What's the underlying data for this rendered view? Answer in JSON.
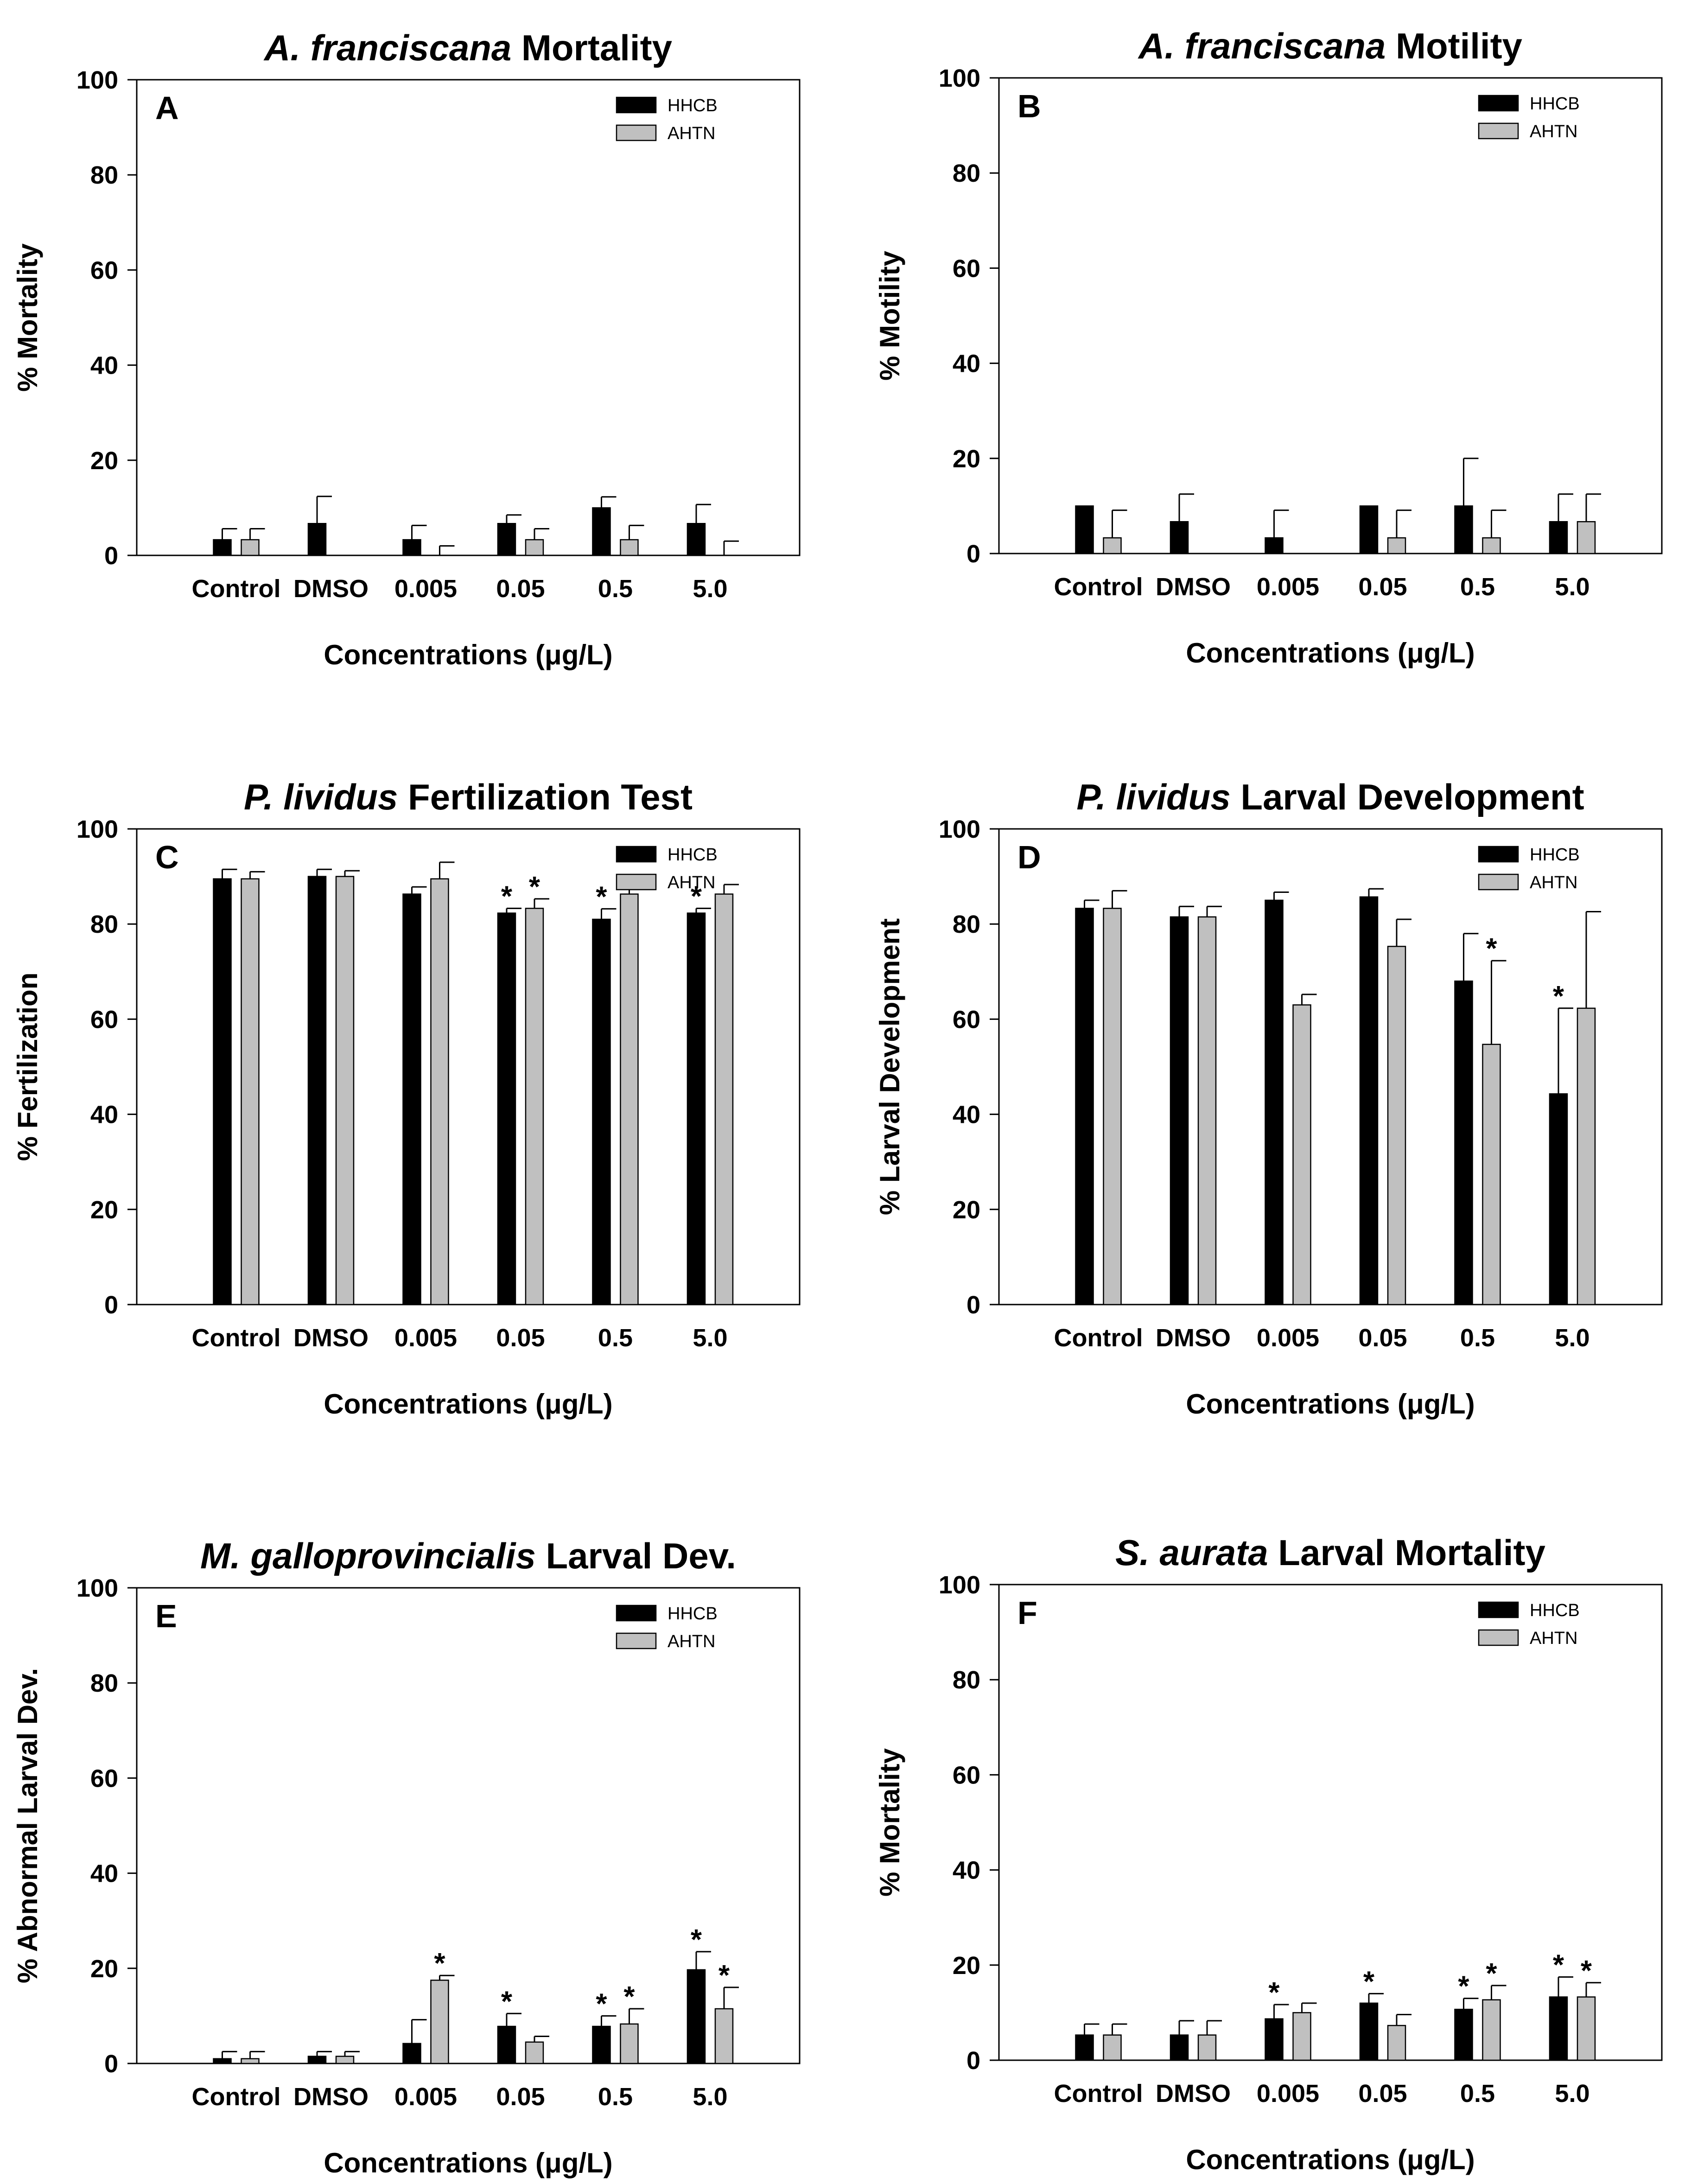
{
  "chart_data": [
    {
      "id": "A",
      "type": "bar",
      "panel_label": "A",
      "title": [
        {
          "text": "A. franciscana",
          "italic": true
        },
        {
          "text": " Mortality",
          "italic": false
        }
      ],
      "xlabel": "Concentrations (μg/L)",
      "ylabel": "% Mortality",
      "ylim": [
        0,
        100
      ],
      "yticks": [
        0,
        20,
        40,
        60,
        80,
        100
      ],
      "categories": [
        "Control",
        "DMSO",
        "0.005",
        "0.05",
        "0.5",
        "5.0"
      ],
      "legend": {
        "position": "top-right",
        "entries": [
          "HHCB",
          "AHTN"
        ]
      },
      "series": [
        {
          "name": "HHCB",
          "color": "#000000",
          "values": [
            3.3,
            6.7,
            3.3,
            6.7,
            10.0,
            6.7
          ],
          "errors": [
            2.3,
            5.7,
            3.0,
            1.8,
            2.3,
            4.0
          ],
          "sig": [
            false,
            false,
            false,
            false,
            false,
            false
          ]
        },
        {
          "name": "AHTN",
          "color": "#c0c0c0",
          "values": [
            3.3,
            0,
            0,
            3.3,
            3.3,
            0
          ],
          "errors": [
            2.3,
            0,
            2.0,
            2.3,
            3.0,
            3.0
          ],
          "sig": [
            false,
            false,
            false,
            false,
            false,
            false
          ]
        }
      ]
    },
    {
      "id": "B",
      "type": "bar",
      "panel_label": "B",
      "title": [
        {
          "text": "A. franciscana",
          "italic": true
        },
        {
          "text": " Motility",
          "italic": false
        }
      ],
      "xlabel": "Concentrations (μg/L)",
      "ylabel": "% Motility",
      "ylim": [
        0,
        100
      ],
      "yticks": [
        0,
        20,
        40,
        60,
        80,
        100
      ],
      "categories": [
        "Control",
        "DMSO",
        "0.005",
        "0.05",
        "0.5",
        "5.0"
      ],
      "legend": {
        "position": "top-right",
        "entries": [
          "HHCB",
          "AHTN"
        ]
      },
      "series": [
        {
          "name": "HHCB",
          "color": "#000000",
          "values": [
            10.0,
            6.7,
            3.3,
            10.0,
            10.0,
            6.7
          ],
          "errors": [
            0,
            5.8,
            5.8,
            0,
            10.0,
            5.8
          ],
          "sig": [
            false,
            false,
            false,
            false,
            false,
            false
          ]
        },
        {
          "name": "AHTN",
          "color": "#c0c0c0",
          "values": [
            3.3,
            0,
            0,
            3.3,
            3.3,
            6.7
          ],
          "errors": [
            5.8,
            0,
            0,
            5.8,
            5.8,
            5.8
          ],
          "sig": [
            false,
            false,
            false,
            false,
            false,
            false
          ]
        }
      ]
    },
    {
      "id": "C",
      "type": "bar",
      "panel_label": "C",
      "title": [
        {
          "text": "P. lividus",
          "italic": true
        },
        {
          "text": " Fertilization Test",
          "italic": false
        }
      ],
      "xlabel": "Concentrations (μg/L)",
      "ylabel": "% Fertilization",
      "ylim": [
        0,
        100
      ],
      "yticks": [
        0,
        20,
        40,
        60,
        80,
        100
      ],
      "categories": [
        "Control",
        "DMSO",
        "0.005",
        "0.05",
        "0.5",
        "5.0"
      ],
      "legend": {
        "position": "top-right",
        "entries": [
          "HHCB",
          "AHTN"
        ]
      },
      "series": [
        {
          "name": "HHCB",
          "color": "#000000",
          "values": [
            89.5,
            90.0,
            86.3,
            82.3,
            81.0,
            82.3
          ],
          "errors": [
            2.0,
            1.5,
            1.5,
            1.0,
            2.2,
            1.0
          ],
          "sig": [
            false,
            false,
            false,
            true,
            true,
            true
          ]
        },
        {
          "name": "AHTN",
          "color": "#c0c0c0",
          "values": [
            89.5,
            90.0,
            89.5,
            83.3,
            86.3,
            86.3
          ],
          "errors": [
            1.5,
            1.2,
            3.5,
            2.0,
            4.0,
            2.0
          ],
          "sig": [
            false,
            false,
            false,
            true,
            false,
            false
          ]
        }
      ]
    },
    {
      "id": "D",
      "type": "bar",
      "panel_label": "D",
      "title": [
        {
          "text": "P. lividus",
          "italic": true
        },
        {
          "text": " Larval Development",
          "italic": false
        }
      ],
      "xlabel": "Concentrations (μg/L)",
      "ylabel": "% Larval Development",
      "ylim": [
        0,
        100
      ],
      "yticks": [
        0,
        20,
        40,
        60,
        80,
        100
      ],
      "categories": [
        "Control",
        "DMSO",
        "0.005",
        "0.05",
        "0.5",
        "5.0"
      ],
      "legend": {
        "position": "top-right",
        "entries": [
          "HHCB",
          "AHTN"
        ]
      },
      "series": [
        {
          "name": "HHCB",
          "color": "#000000",
          "values": [
            83.3,
            81.5,
            85.0,
            85.7,
            68.0,
            44.3
          ],
          "errors": [
            1.7,
            2.2,
            1.7,
            1.7,
            10.0,
            18.0
          ],
          "sig": [
            false,
            false,
            false,
            false,
            false,
            true
          ]
        },
        {
          "name": "AHTN",
          "color": "#c0c0c0",
          "values": [
            83.3,
            81.5,
            63.0,
            75.3,
            54.7,
            62.3
          ],
          "errors": [
            3.7,
            2.2,
            2.2,
            5.7,
            17.6,
            20.3
          ],
          "sig": [
            false,
            false,
            false,
            false,
            true,
            false
          ]
        }
      ]
    },
    {
      "id": "E",
      "type": "bar",
      "panel_label": "E",
      "title": [
        {
          "text": "M. galloprovincialis",
          "italic": true
        },
        {
          "text": " Larval Dev.",
          "italic": false
        }
      ],
      "xlabel": "Concentrations (μg/L)",
      "ylabel": "% Abnormal Larval Dev.",
      "ylim": [
        0,
        100
      ],
      "yticks": [
        0,
        20,
        40,
        60,
        80,
        100
      ],
      "categories": [
        "Control",
        "DMSO",
        "0.005",
        "0.05",
        "0.5",
        "5.0"
      ],
      "legend": {
        "position": "top-right",
        "entries": [
          "HHCB",
          "AHTN"
        ]
      },
      "series": [
        {
          "name": "HHCB",
          "color": "#000000",
          "values": [
            1.0,
            1.5,
            4.2,
            7.8,
            7.8,
            19.7
          ],
          "errors": [
            1.5,
            1.0,
            5.0,
            2.7,
            2.2,
            3.8
          ],
          "sig": [
            false,
            false,
            false,
            true,
            true,
            true
          ]
        },
        {
          "name": "AHTN",
          "color": "#c0c0c0",
          "values": [
            1.0,
            1.5,
            17.5,
            4.5,
            8.3,
            11.5
          ],
          "errors": [
            1.5,
            1.0,
            1.0,
            1.2,
            3.2,
            4.5
          ],
          "sig": [
            false,
            false,
            true,
            false,
            true,
            true
          ]
        }
      ]
    },
    {
      "id": "F",
      "type": "bar",
      "panel_label": "F",
      "title": [
        {
          "text": "S. aurata",
          "italic": true
        },
        {
          "text": " Larval Mortality",
          "italic": false
        }
      ],
      "xlabel": "Concentrations (μg/L)",
      "ylabel": "% Mortality",
      "ylim": [
        0,
        100
      ],
      "yticks": [
        0,
        20,
        40,
        60,
        80,
        100
      ],
      "categories": [
        "Control",
        "DMSO",
        "0.005",
        "0.05",
        "0.5",
        "5.0"
      ],
      "legend": {
        "position": "top-right",
        "entries": [
          "HHCB",
          "AHTN"
        ]
      },
      "series": [
        {
          "name": "HHCB",
          "color": "#000000",
          "values": [
            5.3,
            5.3,
            8.7,
            12.0,
            10.7,
            13.3
          ],
          "errors": [
            2.3,
            3.0,
            3.0,
            2.0,
            2.3,
            4.2
          ],
          "sig": [
            false,
            false,
            true,
            true,
            true,
            true
          ]
        },
        {
          "name": "AHTN",
          "color": "#c0c0c0",
          "values": [
            5.3,
            5.3,
            10.0,
            7.3,
            12.7,
            13.3
          ],
          "errors": [
            2.3,
            3.0,
            2.0,
            2.3,
            3.0,
            3.0
          ],
          "sig": [
            false,
            false,
            false,
            false,
            true,
            true
          ]
        }
      ]
    }
  ]
}
